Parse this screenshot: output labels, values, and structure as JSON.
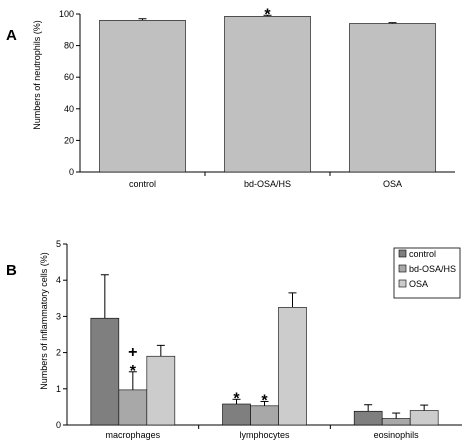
{
  "chart_data": [
    {
      "panel_label": "A",
      "type": "bar",
      "categories": [
        "control",
        "bd-OSA/HS",
        "OSA"
      ],
      "series": [
        {
          "values": [
            96,
            98.5,
            94
          ],
          "errors": [
            1.0,
            0.7,
            0.5
          ],
          "color": "#c0c0c0"
        }
      ],
      "ylabel": "Numbers of neutrophils (%)",
      "ylim": [
        0,
        100
      ],
      "yticks": [
        0,
        20,
        40,
        60,
        80,
        100
      ],
      "annotations": [
        {
          "category": "bd-OSA/HS",
          "text": "*"
        }
      ],
      "grid": false,
      "legend": "none"
    },
    {
      "panel_label": "B",
      "type": "bar",
      "categories": [
        "macrophages",
        "lymphocytes",
        "eosinophils"
      ],
      "series": [
        {
          "name": "control",
          "values": [
            2.95,
            0.58,
            0.38
          ],
          "errors": [
            1.2,
            0.13,
            0.18
          ],
          "color": "#7f7f7f"
        },
        {
          "name": "bd-OSA/HS",
          "values": [
            0.97,
            0.53,
            0.18
          ],
          "errors": [
            0.5,
            0.12,
            0.15
          ],
          "color": "#a8a8a8"
        },
        {
          "name": "OSA",
          "values": [
            1.9,
            3.25,
            0.4
          ],
          "errors": [
            0.3,
            0.4,
            0.15
          ],
          "color": "#cccccc"
        }
      ],
      "ylabel": "Numbers of inflammatory cells (%)",
      "ylim": [
        0,
        5
      ],
      "yticks": [
        0,
        1,
        2,
        3,
        4,
        5
      ],
      "annotations": [
        {
          "category": "macrophages",
          "series": "bd-OSA/HS",
          "text": "*"
        },
        {
          "category": "macrophages",
          "series": "bd-OSA/HS",
          "text": "+"
        },
        {
          "category": "lymphocytes",
          "series": "control",
          "text": "*"
        },
        {
          "category": "lymphocytes",
          "series": "bd-OSA/HS",
          "text": "*"
        }
      ],
      "grid": false,
      "legend": "top-right"
    }
  ]
}
